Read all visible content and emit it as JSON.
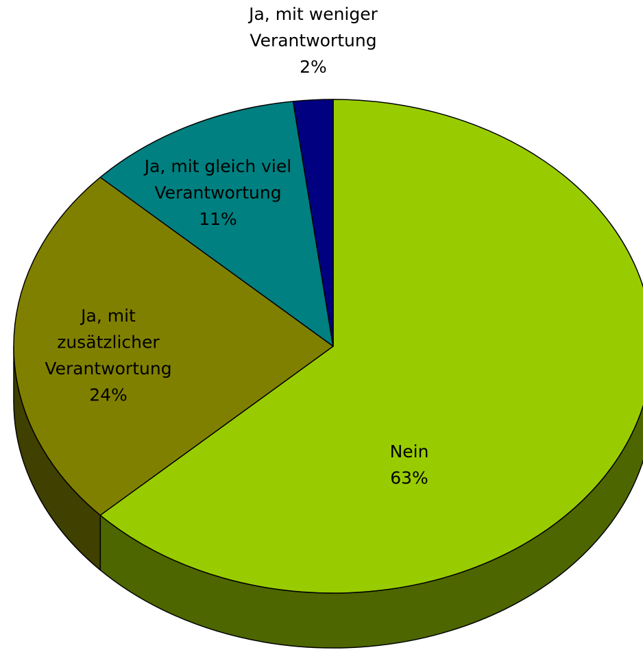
{
  "chart_data": {
    "type": "pie",
    "categories": [
      "Nein",
      "Ja, mit\nzusätzlicher\nVerantwortung",
      "Ja, mit gleich viel\nVerantwortung",
      "Ja, mit weniger\nVerantwortung"
    ],
    "values": [
      63,
      24,
      11,
      2
    ],
    "value_labels": [
      "63%",
      "24%",
      "11%",
      "2%"
    ],
    "colors": [
      "#99cc00",
      "#808000",
      "#008080",
      "#000080"
    ],
    "side_colors": [
      "#4d6600",
      "#404000",
      "#004040",
      "#000040"
    ]
  }
}
